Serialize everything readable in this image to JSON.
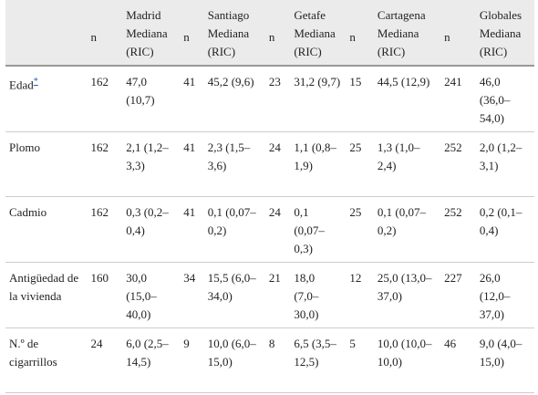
{
  "header": {
    "groups": [
      {
        "name": "Madrid",
        "n": "n",
        "median": "Mediana (RIC)"
      },
      {
        "name": "Santiago",
        "n": "n",
        "median": "Mediana (RIC)"
      },
      {
        "name": "Getafe",
        "n": "n",
        "median": "Mediana (RIC)"
      },
      {
        "name": "Cartagena",
        "n": "n",
        "median": "Mediana (RIC)"
      },
      {
        "name": "Globales",
        "n": "n",
        "median": "Mediana (RIC)"
      }
    ]
  },
  "rows": [
    {
      "label": "Edad",
      "footnote": "*",
      "cells": [
        [
          "162",
          "47,0 (10,7)"
        ],
        [
          "41",
          "45,2 (9,6)"
        ],
        [
          "23",
          "31,2 (9,7)"
        ],
        [
          "15",
          "44,5 (12,9)"
        ],
        [
          "241",
          "46,0 (36,0–54,0)"
        ]
      ]
    },
    {
      "label": "Plomo",
      "cells": [
        [
          "162",
          "2,1 (1,2–3,3)"
        ],
        [
          "41",
          "2,3 (1,5–3,6)"
        ],
        [
          "24",
          "1,1 (0,8–1,9)"
        ],
        [
          "25",
          "1,3 (1,0–2,4)"
        ],
        [
          "252",
          "2,0 (1,2–3,1)"
        ]
      ]
    },
    {
      "label": "Cadmio",
      "cells": [
        [
          "162",
          "0,3 (0,2–0,4)"
        ],
        [
          "41",
          "0,1 (0,07–0,2)"
        ],
        [
          "24",
          "0,1 (0,07–0,3)"
        ],
        [
          "25",
          "0,1 (0,07–0,2)"
        ],
        [
          "252",
          "0,2 (0,1–0,4)"
        ]
      ]
    },
    {
      "label": "Antigüedad de la vivienda",
      "cells": [
        [
          "160",
          "30,0 (15,0–40,0)"
        ],
        [
          "34",
          "15,5 (6,0–34,0)"
        ],
        [
          "21",
          "18,0 (7,0–30,0)"
        ],
        [
          "12",
          "25,0 (13,0–37,0)"
        ],
        [
          "227",
          "26,0 (12,0–37,0)"
        ]
      ]
    },
    {
      "label": "N.º de cigarrillos",
      "cells": [
        [
          "24",
          "6,0 (2,5–14,5)"
        ],
        [
          "9",
          "10,0 (6,0–15,0)"
        ],
        [
          "8",
          "6,5 (3,5–12,5)"
        ],
        [
          "5",
          "10,0 (10,0–10,0)"
        ],
        [
          "46",
          "9,0 (4,0–15,0)"
        ]
      ]
    }
  ]
}
